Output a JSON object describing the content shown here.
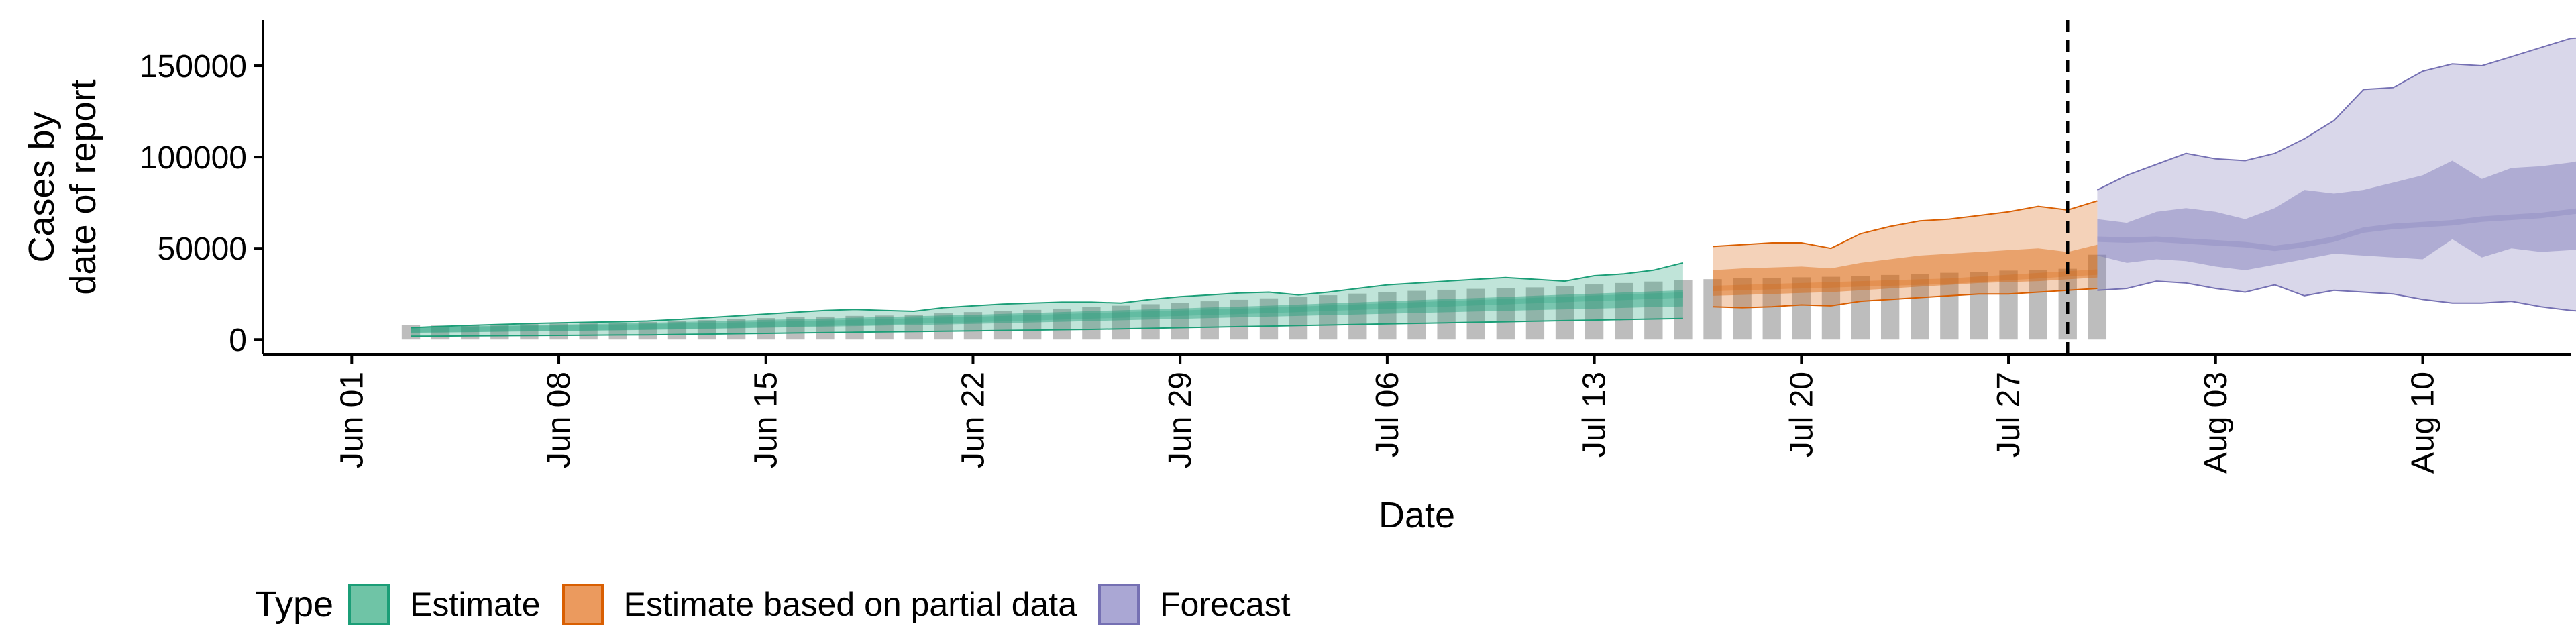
{
  "chart_data": {
    "type": "area",
    "xlabel": "Date",
    "ylabel_lines": [
      "Cases by",
      "date of report"
    ],
    "x_ticks": [
      "Jun 01",
      "Jun 08",
      "Jun 15",
      "Jun 22",
      "Jun 29",
      "Jul 06",
      "Jul 13",
      "Jul 20",
      "Jul 27",
      "Aug 03",
      "Aug 10"
    ],
    "y_ticks": [
      "0",
      "50000",
      "100000",
      "150000"
    ],
    "ylim": [
      -8000,
      175000
    ],
    "xlim": [
      "2020-05-29",
      "2020-08-15"
    ],
    "vline_date": "2020-07-29",
    "grid": false,
    "reported_cases": {
      "start": "2020-06-03",
      "values": [
        7800,
        7700,
        7900,
        8200,
        8500,
        8800,
        9000,
        9300,
        9700,
        10200,
        10700,
        11200,
        11800,
        12200,
        12600,
        13000,
        13200,
        13700,
        14400,
        15100,
        15700,
        16300,
        17000,
        17800,
        18600,
        19400,
        20200,
        21000,
        21800,
        22600,
        23400,
        24300,
        25200,
        26000,
        26700,
        27300,
        27800,
        28100,
        28600,
        29400,
        30200,
        31000,
        31800,
        32500,
        33100,
        33600,
        33900,
        34100,
        34400,
        34900,
        35400,
        36000,
        36600,
        37200,
        37800,
        38300,
        38800,
        46500
      ]
    },
    "series": [
      {
        "name": "Estimate",
        "color": "#1b9e77",
        "start": "2020-06-03",
        "median": [
          5200,
          5400,
          5600,
          5800,
          6000,
          6200,
          6400,
          6700,
          7000,
          7300,
          7600,
          7900,
          8200,
          8600,
          9000,
          9400,
          9800,
          10200,
          10600,
          11000,
          11500,
          12000,
          12500,
          13000,
          13500,
          14000,
          14500,
          15000,
          15500,
          16000,
          16600,
          17200,
          17800,
          18400,
          19000,
          19600,
          20200,
          20800,
          21400,
          22000,
          22600,
          23200,
          23800,
          24400
        ],
        "lower90": [
          1800,
          1900,
          2000,
          2100,
          2200,
          2300,
          2400,
          2500,
          2600,
          2800,
          3000,
          3200,
          3400,
          3600,
          3800,
          4000,
          4200,
          4400,
          4600,
          4800,
          5000,
          5200,
          5400,
          5600,
          5900,
          6200,
          6500,
          6800,
          7100,
          7400,
          7700,
          8000,
          8300,
          8600,
          8900,
          9200,
          9500,
          9800,
          10100,
          10400,
          10700,
          11000,
          11300,
          11600
        ],
        "upper90": [
          6500,
          7200,
          7800,
          8300,
          8800,
          9200,
          9500,
          9800,
          10200,
          11000,
          12000,
          13000,
          14000,
          15000,
          16000,
          16500,
          16000,
          15500,
          17500,
          18500,
          19500,
          20000,
          20500,
          20500,
          20000,
          22000,
          23500,
          24500,
          25500,
          26000,
          24500,
          26000,
          28000,
          30000,
          31000,
          32000,
          33000,
          34000,
          33000,
          32000,
          35000,
          36000,
          38000,
          42000
        ],
        "lower50": [
          3800,
          3900,
          4100,
          4300,
          4500,
          4700,
          4900,
          5100,
          5300,
          5600,
          5900,
          6200,
          6500,
          6800,
          7100,
          7400,
          7700,
          8000,
          8300,
          8600,
          9000,
          9400,
          9800,
          10200,
          10600,
          11000,
          11400,
          11800,
          12200,
          12600,
          13000,
          13400,
          13800,
          14200,
          14600,
          15000,
          15400,
          15800,
          16200,
          16600,
          17000,
          17400,
          17800,
          18200
        ],
        "upper50": [
          6800,
          7000,
          7300,
          7600,
          7900,
          8200,
          8500,
          8800,
          9200,
          9600,
          10000,
          10400,
          10800,
          11200,
          11600,
          12000,
          12400,
          12800,
          13200,
          13600,
          14100,
          14600,
          15100,
          15600,
          16100,
          16600,
          17100,
          17600,
          18100,
          18600,
          19200,
          19800,
          20400,
          21000,
          21600,
          22200,
          22800,
          23400,
          24000,
          24600,
          25200,
          25800,
          26400,
          27000
        ]
      },
      {
        "name": "Estimate based on partial data",
        "color": "#d95f02",
        "start": "2020-07-17",
        "median": [
          28000,
          28500,
          29000,
          29500,
          30000,
          30500,
          31000,
          31500,
          32000,
          33000,
          34000,
          35000,
          36000,
          37000
        ],
        "lower90": [
          18000,
          17500,
          18000,
          19000,
          18500,
          21000,
          22000,
          23000,
          24000,
          25000,
          25000,
          26000,
          27000,
          28000
        ],
        "upper90": [
          51000,
          52000,
          53000,
          53000,
          50000,
          58000,
          62000,
          65000,
          66000,
          68000,
          70000,
          73000,
          71000,
          76000
        ],
        "lower50": [
          24000,
          24500,
          25000,
          25500,
          26000,
          27000,
          28000,
          29000,
          30000,
          31000,
          31500,
          32000,
          33000,
          34000
        ],
        "upper50": [
          38000,
          39000,
          39500,
          40000,
          39000,
          42000,
          44000,
          46000,
          47000,
          48000,
          49000,
          50000,
          48000,
          52000
        ]
      },
      {
        "name": "Forecast",
        "color": "#7570b3",
        "start": "2020-07-30",
        "median": [
          55000,
          54500,
          55000,
          54000,
          53000,
          52000,
          50000,
          52000,
          55000,
          60000,
          62000,
          63000,
          64000,
          66000,
          67000,
          68000,
          70000,
          72000
        ],
        "lower90": [
          27000,
          28000,
          32000,
          31000,
          28000,
          26000,
          30000,
          24000,
          27000,
          26000,
          25000,
          22000,
          20000,
          20000,
          21000,
          18000,
          16000,
          15000
        ],
        "upper90": [
          82000,
          90000,
          96000,
          102000,
          99000,
          98000,
          102000,
          110000,
          120000,
          137000,
          138000,
          147000,
          151000,
          150000,
          155000,
          160000,
          165000,
          166000
        ],
        "lower50": [
          46000,
          42000,
          44000,
          43000,
          40000,
          38000,
          41000,
          44000,
          47000,
          46000,
          45000,
          44000,
          55000,
          45000,
          50000,
          48000,
          49000,
          50000
        ],
        "upper50": [
          66000,
          64000,
          70000,
          72000,
          70000,
          66000,
          72000,
          82000,
          80000,
          82000,
          86000,
          90000,
          98000,
          88000,
          94000,
          95000,
          97000,
          100000
        ]
      }
    ],
    "legend": {
      "title": "Type",
      "position": "bottom",
      "items": [
        {
          "label": "Estimate",
          "fill": "#6fc4a6",
          "border": "#1b9e77"
        },
        {
          "label": "Estimate based on partial data",
          "fill": "#eb9a5e",
          "border": "#d95f02"
        },
        {
          "label": "Forecast",
          "fill": "#aaa7d4",
          "border": "#7570b3"
        }
      ]
    }
  }
}
